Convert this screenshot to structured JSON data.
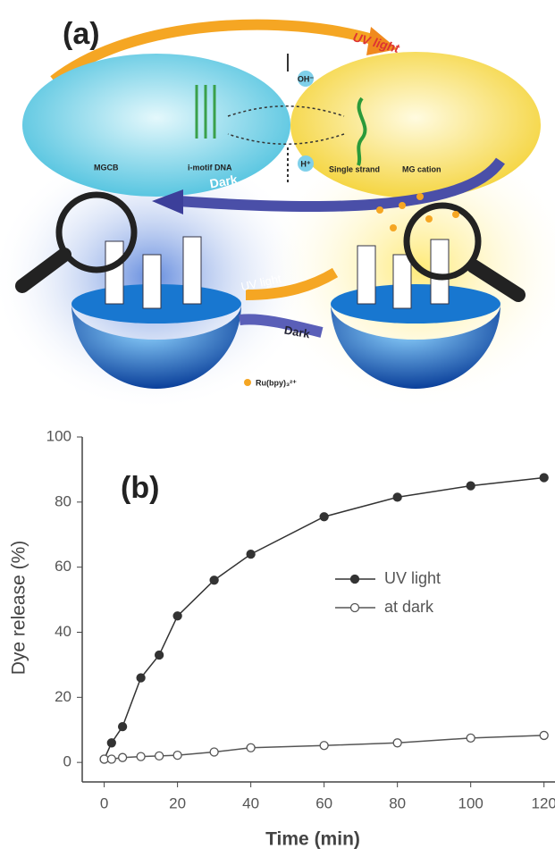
{
  "panel_a": {
    "label": "(a)",
    "uv_top": "UV light",
    "base": "OH⁻",
    "acid": "H⁺",
    "mgcb": "MGCB",
    "dna": "i-motif DNA",
    "single": "Single strand",
    "cation": "MG cation",
    "dark_top": "Dark",
    "uv_mid": "UV light",
    "dark_mid": "Dark",
    "ru": "Ru(bpy)₃²⁺"
  },
  "chart_data": {
    "type": "line",
    "panel_label": "(b)",
    "x_label": "Time (min)",
    "y_label": "Dye release (%)",
    "x": [
      0,
      2,
      5,
      10,
      15,
      20,
      30,
      40,
      60,
      80,
      100,
      120
    ],
    "series": [
      {
        "name": "UV light",
        "color": "#333333",
        "marker": "filled",
        "values": [
          1,
          6,
          11,
          26,
          33,
          45,
          56,
          64,
          75.5,
          81.5,
          85,
          87.5
        ]
      },
      {
        "name": "at dark",
        "color": "#555555",
        "marker": "open",
        "values": [
          1,
          1,
          1.5,
          1.8,
          2,
          2.2,
          3.2,
          4.5,
          5.2,
          6,
          7.5,
          8.3
        ]
      }
    ],
    "xlim": [
      -6,
      123
    ],
    "ylim": [
      -6,
      100
    ],
    "xticks": [
      0,
      20,
      40,
      60,
      80,
      100,
      120
    ],
    "yticks": [
      0,
      20,
      40,
      60,
      80,
      100
    ],
    "grid": false
  }
}
